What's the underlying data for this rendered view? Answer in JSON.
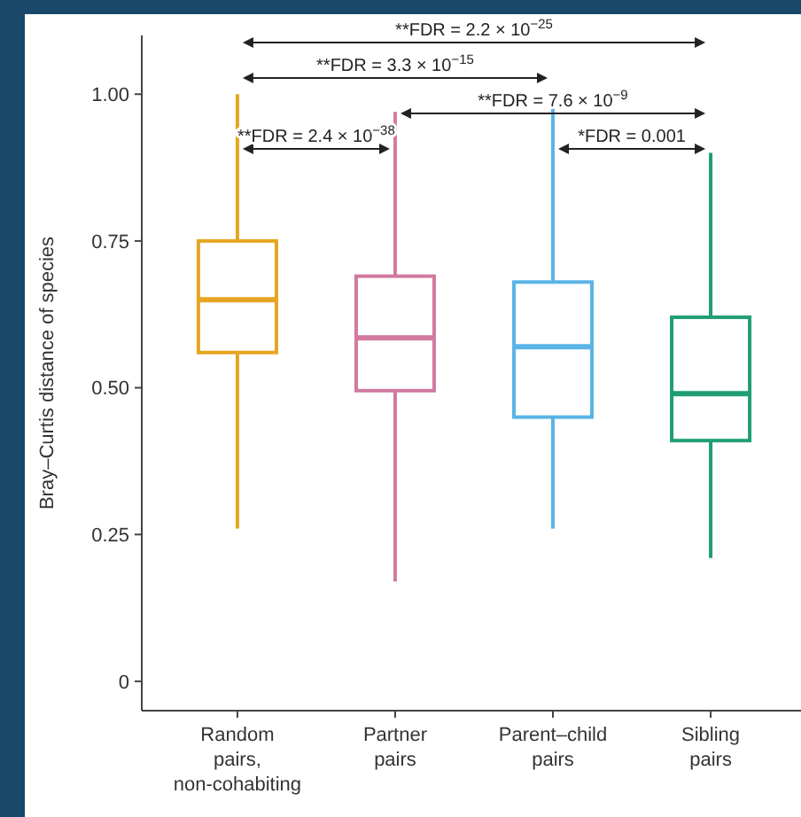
{
  "chart_data": {
    "type": "box",
    "ylabel": "Bray–Curtis distance of species",
    "categories": [
      "Random\npairs,\nnon-cohabiting",
      "Partner\npairs",
      "Parent–child\npairs",
      "Sibling\npairs"
    ],
    "colors": [
      "#e6a520",
      "#d27aa0",
      "#5ab4e6",
      "#1f9e72"
    ],
    "boxes": [
      {
        "low": 0.26,
        "q1": 0.56,
        "median": 0.65,
        "q3": 0.75,
        "high": 1.0
      },
      {
        "low": 0.17,
        "q1": 0.495,
        "median": 0.585,
        "q3": 0.69,
        "high": 0.97
      },
      {
        "low": 0.26,
        "q1": 0.45,
        "median": 0.57,
        "q3": 0.68,
        "high": 0.98
      },
      {
        "low": 0.21,
        "q1": 0.41,
        "median": 0.49,
        "q3": 0.62,
        "high": 0.9
      }
    ],
    "ylim": [
      -0.05,
      1.1
    ],
    "yticks": [
      0,
      0.25,
      {
        "value": 0.5,
        "label": "0.50"
      },
      0.75,
      {
        "value": 1,
        "label": "1.00"
      }
    ],
    "annotations": [
      "**FDR = 2.2 × 10$^{−25}$",
      "**FDR = 3.3 × 10$^{−15}$",
      "**FDR = 7.6 × 10$^{−9}$",
      "**FDR = 2.4 × 10$^{−38}$",
      "*FDR = 0.001"
    ],
    "grid": false
  }
}
